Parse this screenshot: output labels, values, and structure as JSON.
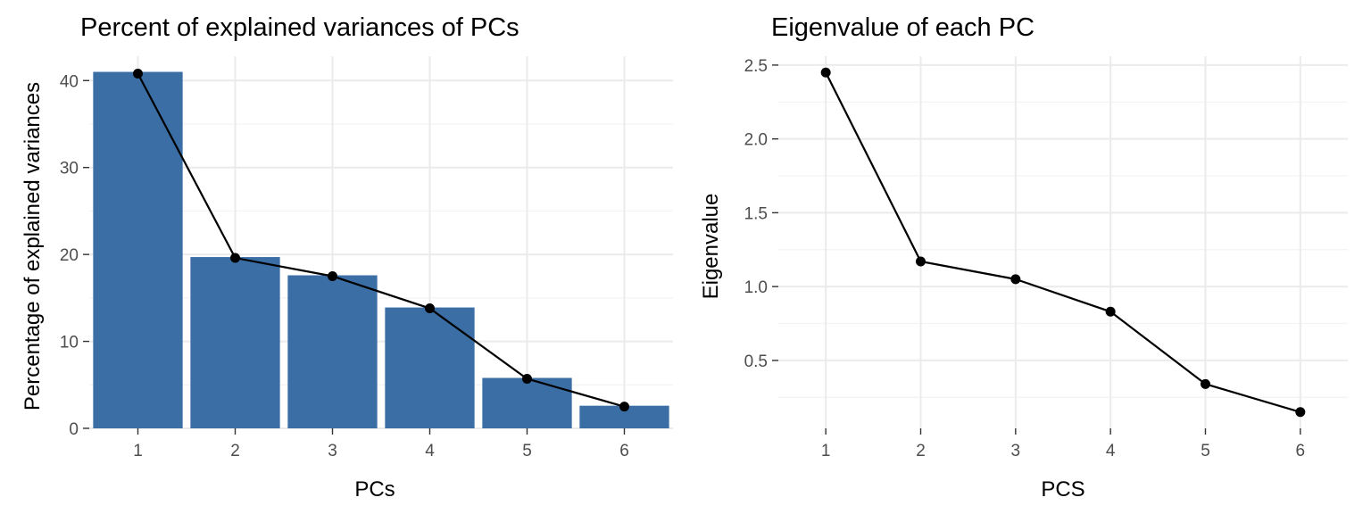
{
  "chart_data": [
    {
      "type": "bar",
      "title": "Percent of explained variances of PCs",
      "xlabel": "PCs",
      "ylabel": "Percentage of explained variances",
      "categories": [
        "1",
        "2",
        "3",
        "4",
        "5",
        "6"
      ],
      "values": [
        41.0,
        19.7,
        17.6,
        13.9,
        5.8,
        2.6
      ],
      "line_values": [
        40.8,
        19.6,
        17.5,
        13.8,
        5.7,
        2.5
      ],
      "ylim": [
        0,
        42.8
      ],
      "yticks": [
        0,
        10,
        20,
        30,
        40
      ],
      "grid": true,
      "bar_color": "#3A6EA5",
      "line_color": "#000000"
    },
    {
      "type": "line",
      "title": "Eigenvalue of each PC",
      "xlabel": "PCS",
      "ylabel": "Eigenvalue",
      "x": [
        1,
        2,
        3,
        4,
        5,
        6
      ],
      "xticks": [
        "1",
        "2",
        "3",
        "4",
        "5",
        "6"
      ],
      "values": [
        2.45,
        1.17,
        1.05,
        0.83,
        0.34,
        0.15
      ],
      "ylim": [
        0.04,
        2.56
      ],
      "yticks": [
        0.5,
        1.0,
        1.5,
        2.0,
        2.5
      ],
      "ytick_labels": [
        "0.5",
        "1.0",
        "1.5",
        "2.0",
        "2.5"
      ],
      "grid": true,
      "line_color": "#000000"
    }
  ]
}
